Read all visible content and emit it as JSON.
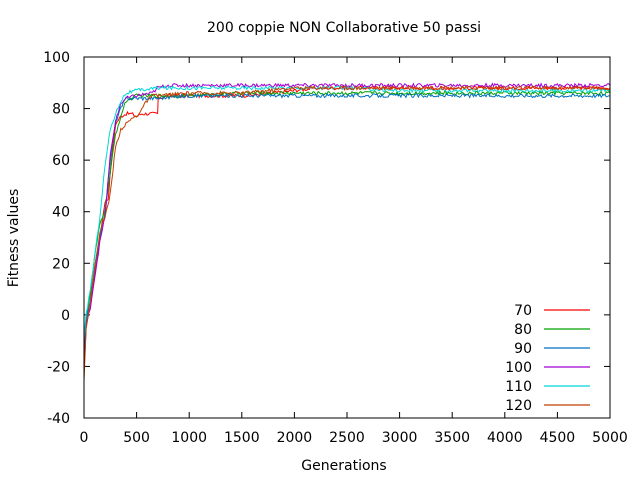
{
  "chart_data": {
    "type": "line",
    "title": "200 coppie NON Collaborative 50 passi",
    "xlabel": "Generations",
    "ylabel": "Fitness values",
    "xlim": [
      0,
      5000
    ],
    "ylim": [
      -40,
      100
    ],
    "xticks": [
      0,
      500,
      1000,
      1500,
      2000,
      2500,
      3000,
      3500,
      4000,
      4500,
      5000
    ],
    "yticks": [
      -40,
      -20,
      0,
      20,
      40,
      60,
      80,
      100
    ],
    "grid": false,
    "legend_position": "bottom-right",
    "series": [
      {
        "name": "70",
        "color": "#ff0000",
        "points": [
          [
            0,
            -20
          ],
          [
            20,
            -3
          ],
          [
            60,
            3
          ],
          [
            100,
            15
          ],
          [
            150,
            30
          ],
          [
            200,
            44
          ],
          [
            230,
            45
          ],
          [
            260,
            60
          ],
          [
            300,
            74
          ],
          [
            350,
            77
          ],
          [
            400,
            78
          ],
          [
            450,
            78
          ],
          [
            500,
            77
          ],
          [
            550,
            78
          ],
          [
            600,
            78
          ],
          [
            700,
            78
          ],
          [
            705,
            84
          ],
          [
            800,
            85
          ],
          [
            1000,
            85
          ],
          [
            1500,
            85
          ],
          [
            1800,
            86
          ],
          [
            2000,
            87
          ],
          [
            2200,
            88
          ],
          [
            2500,
            88
          ],
          [
            3000,
            88
          ],
          [
            3500,
            88
          ],
          [
            4000,
            88
          ],
          [
            4500,
            88
          ],
          [
            5000,
            88
          ]
        ]
      },
      {
        "name": "80",
        "color": "#00a000",
        "points": [
          [
            0,
            -18
          ],
          [
            20,
            -2
          ],
          [
            60,
            8
          ],
          [
            100,
            22
          ],
          [
            150,
            35
          ],
          [
            200,
            41
          ],
          [
            250,
            55
          ],
          [
            300,
            70
          ],
          [
            350,
            77
          ],
          [
            400,
            83
          ],
          [
            500,
            85
          ],
          [
            700,
            85
          ],
          [
            1000,
            85
          ],
          [
            1500,
            86
          ],
          [
            2000,
            86
          ],
          [
            2500,
            86
          ],
          [
            3000,
            86
          ],
          [
            3500,
            86
          ],
          [
            4000,
            86
          ],
          [
            4500,
            86
          ],
          [
            5000,
            86
          ]
        ]
      },
      {
        "name": "90",
        "color": "#0070c0",
        "points": [
          [
            0,
            -15
          ],
          [
            20,
            -2
          ],
          [
            60,
            5
          ],
          [
            100,
            18
          ],
          [
            150,
            30
          ],
          [
            200,
            40
          ],
          [
            250,
            60
          ],
          [
            300,
            75
          ],
          [
            350,
            80
          ],
          [
            400,
            84
          ],
          [
            500,
            84
          ],
          [
            700,
            84
          ],
          [
            1000,
            85
          ],
          [
            1500,
            85
          ],
          [
            2000,
            85
          ],
          [
            2500,
            85
          ],
          [
            3000,
            85
          ],
          [
            3500,
            85
          ],
          [
            4000,
            85
          ],
          [
            4500,
            85
          ],
          [
            5000,
            85
          ]
        ]
      },
      {
        "name": "100",
        "color": "#a000d0",
        "points": [
          [
            0,
            -22
          ],
          [
            20,
            -5
          ],
          [
            60,
            3
          ],
          [
            100,
            14
          ],
          [
            150,
            28
          ],
          [
            200,
            38
          ],
          [
            250,
            62
          ],
          [
            300,
            75
          ],
          [
            350,
            82
          ],
          [
            400,
            84
          ],
          [
            500,
            85
          ],
          [
            650,
            86
          ],
          [
            700,
            88
          ],
          [
            800,
            89
          ],
          [
            1000,
            89
          ],
          [
            1500,
            89
          ],
          [
            2000,
            89
          ],
          [
            2500,
            89
          ],
          [
            3000,
            89
          ],
          [
            3500,
            89
          ],
          [
            4000,
            89
          ],
          [
            4500,
            89
          ],
          [
            5000,
            89
          ]
        ]
      },
      {
        "name": "110",
        "color": "#00d8d8",
        "points": [
          [
            0,
            -10
          ],
          [
            20,
            0
          ],
          [
            60,
            10
          ],
          [
            100,
            22
          ],
          [
            150,
            38
          ],
          [
            200,
            58
          ],
          [
            250,
            72
          ],
          [
            300,
            78
          ],
          [
            350,
            83
          ],
          [
            400,
            86
          ],
          [
            500,
            87
          ],
          [
            700,
            88
          ],
          [
            1000,
            88
          ],
          [
            1500,
            88
          ],
          [
            2000,
            88
          ],
          [
            2500,
            88
          ],
          [
            3000,
            87
          ],
          [
            3500,
            87
          ],
          [
            4000,
            87
          ],
          [
            4500,
            87
          ],
          [
            5000,
            87
          ]
        ]
      },
      {
        "name": "120",
        "color": "#c04000",
        "points": [
          [
            0,
            -25
          ],
          [
            20,
            -5
          ],
          [
            60,
            5
          ],
          [
            100,
            18
          ],
          [
            150,
            32
          ],
          [
            200,
            38
          ],
          [
            250,
            47
          ],
          [
            300,
            65
          ],
          [
            350,
            72
          ],
          [
            400,
            74
          ],
          [
            450,
            76
          ],
          [
            500,
            77
          ],
          [
            550,
            80
          ],
          [
            600,
            83
          ],
          [
            650,
            85
          ],
          [
            700,
            85
          ],
          [
            1000,
            86
          ],
          [
            1500,
            86
          ],
          [
            2000,
            88
          ],
          [
            2500,
            88
          ],
          [
            3000,
            88
          ],
          [
            3500,
            88
          ],
          [
            4000,
            88
          ],
          [
            4500,
            88
          ],
          [
            5000,
            88
          ]
        ]
      }
    ]
  }
}
